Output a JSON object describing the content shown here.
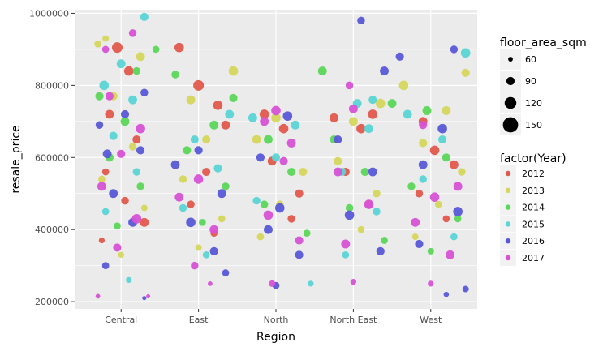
{
  "chart_data": {
    "type": "scatter",
    "title": "",
    "xlabel": "Region",
    "ylabel": "resale_price",
    "categories": [
      "Central",
      "East",
      "North",
      "North East",
      "West"
    ],
    "ylim": [
      180000,
      1010000
    ],
    "y_ticks": [
      200000,
      400000,
      600000,
      800000,
      1000000
    ],
    "y_tick_labels": [
      "200000",
      "400000",
      "600000",
      "800000",
      "1000000"
    ],
    "grid": true,
    "background": "#ebebeb",
    "legend_placement": "right",
    "size_legend": {
      "title": "floor_area_sqm",
      "items": [
        {
          "label": "60",
          "value": 60
        },
        {
          "label": "90",
          "value": 90
        },
        {
          "label": "120",
          "value": 120
        },
        {
          "label": "150",
          "value": 150
        }
      ]
    },
    "color_legend": {
      "title": "factor(Year)",
      "items": [
        {
          "label": "2012",
          "color": "#e2584c"
        },
        {
          "label": "2013",
          "color": "#d6d65c"
        },
        {
          "label": "2014",
          "color": "#5bd75a"
        },
        {
          "label": "2015",
          "color": "#5bd5d5"
        },
        {
          "label": "2016",
          "color": "#5858d8"
        },
        {
          "label": "2017",
          "color": "#d852d5"
        }
      ]
    },
    "series": [
      {
        "name": "2012",
        "points": [
          {
            "x": 0.95,
            "y": 905000,
            "s": 110
          },
          {
            "x": 1.1,
            "y": 840000,
            "s": 100
          },
          {
            "x": 0.85,
            "y": 720000,
            "s": 95
          },
          {
            "x": 1.2,
            "y": 650000,
            "s": 90
          },
          {
            "x": 0.8,
            "y": 560000,
            "s": 80
          },
          {
            "x": 1.05,
            "y": 480000,
            "s": 85
          },
          {
            "x": 1.3,
            "y": 420000,
            "s": 95
          },
          {
            "x": 0.75,
            "y": 370000,
            "s": 70
          },
          {
            "x": 1.75,
            "y": 905000,
            "s": 100
          },
          {
            "x": 2.0,
            "y": 800000,
            "s": 110
          },
          {
            "x": 2.25,
            "y": 745000,
            "s": 100
          },
          {
            "x": 2.35,
            "y": 690000,
            "s": 95
          },
          {
            "x": 2.1,
            "y": 560000,
            "s": 90
          },
          {
            "x": 1.9,
            "y": 470000,
            "s": 85
          },
          {
            "x": 2.2,
            "y": 390000,
            "s": 80
          },
          {
            "x": 2.85,
            "y": 720000,
            "s": 100
          },
          {
            "x": 3.1,
            "y": 680000,
            "s": 100
          },
          {
            "x": 2.95,
            "y": 590000,
            "s": 95
          },
          {
            "x": 3.3,
            "y": 500000,
            "s": 90
          },
          {
            "x": 3.2,
            "y": 430000,
            "s": 85
          },
          {
            "x": 3.75,
            "y": 710000,
            "s": 95
          },
          {
            "x": 4.1,
            "y": 680000,
            "s": 100
          },
          {
            "x": 4.25,
            "y": 720000,
            "s": 100
          },
          {
            "x": 3.9,
            "y": 560000,
            "s": 90
          },
          {
            "x": 4.2,
            "y": 470000,
            "s": 85
          },
          {
            "x": 4.9,
            "y": 700000,
            "s": 95
          },
          {
            "x": 5.05,
            "y": 620000,
            "s": 100
          },
          {
            "x": 5.3,
            "y": 580000,
            "s": 95
          },
          {
            "x": 4.85,
            "y": 500000,
            "s": 85
          },
          {
            "x": 5.2,
            "y": 430000,
            "s": 80
          }
        ]
      },
      {
        "name": "2013",
        "points": [
          {
            "x": 0.7,
            "y": 915000,
            "s": 80
          },
          {
            "x": 0.8,
            "y": 930000,
            "s": 75
          },
          {
            "x": 1.25,
            "y": 880000,
            "s": 95
          },
          {
            "x": 0.9,
            "y": 770000,
            "s": 90
          },
          {
            "x": 1.15,
            "y": 630000,
            "s": 85
          },
          {
            "x": 0.75,
            "y": 540000,
            "s": 80
          },
          {
            "x": 1.3,
            "y": 460000,
            "s": 75
          },
          {
            "x": 1.0,
            "y": 330000,
            "s": 70
          },
          {
            "x": 1.9,
            "y": 760000,
            "s": 95
          },
          {
            "x": 2.45,
            "y": 840000,
            "s": 100
          },
          {
            "x": 2.1,
            "y": 650000,
            "s": 90
          },
          {
            "x": 1.8,
            "y": 540000,
            "s": 85
          },
          {
            "x": 2.3,
            "y": 430000,
            "s": 80
          },
          {
            "x": 2.0,
            "y": 350000,
            "s": 75
          },
          {
            "x": 3.0,
            "y": 710000,
            "s": 100
          },
          {
            "x": 2.75,
            "y": 650000,
            "s": 95
          },
          {
            "x": 3.35,
            "y": 560000,
            "s": 90
          },
          {
            "x": 3.05,
            "y": 470000,
            "s": 85
          },
          {
            "x": 2.8,
            "y": 380000,
            "s": 80
          },
          {
            "x": 4.35,
            "y": 750000,
            "s": 100
          },
          {
            "x": 4.0,
            "y": 700000,
            "s": 95
          },
          {
            "x": 3.8,
            "y": 590000,
            "s": 90
          },
          {
            "x": 4.3,
            "y": 500000,
            "s": 85
          },
          {
            "x": 4.1,
            "y": 400000,
            "s": 80
          },
          {
            "x": 4.65,
            "y": 800000,
            "s": 100
          },
          {
            "x": 5.45,
            "y": 835000,
            "s": 90
          },
          {
            "x": 5.2,
            "y": 730000,
            "s": 95
          },
          {
            "x": 4.9,
            "y": 640000,
            "s": 90
          },
          {
            "x": 5.4,
            "y": 560000,
            "s": 85
          },
          {
            "x": 5.1,
            "y": 470000,
            "s": 80
          },
          {
            "x": 4.8,
            "y": 380000,
            "s": 75
          }
        ]
      },
      {
        "name": "2014",
        "points": [
          {
            "x": 0.72,
            "y": 770000,
            "s": 90
          },
          {
            "x": 1.2,
            "y": 840000,
            "s": 85
          },
          {
            "x": 1.45,
            "y": 900000,
            "s": 80
          },
          {
            "x": 1.7,
            "y": 830000,
            "s": 85
          },
          {
            "x": 1.05,
            "y": 700000,
            "s": 95
          },
          {
            "x": 0.85,
            "y": 600000,
            "s": 90
          },
          {
            "x": 1.25,
            "y": 520000,
            "s": 85
          },
          {
            "x": 0.95,
            "y": 410000,
            "s": 80
          },
          {
            "x": 2.45,
            "y": 765000,
            "s": 90
          },
          {
            "x": 2.2,
            "y": 690000,
            "s": 95
          },
          {
            "x": 1.85,
            "y": 620000,
            "s": 90
          },
          {
            "x": 2.35,
            "y": 520000,
            "s": 85
          },
          {
            "x": 2.05,
            "y": 420000,
            "s": 80
          },
          {
            "x": 3.6,
            "y": 840000,
            "s": 95
          },
          {
            "x": 2.9,
            "y": 650000,
            "s": 95
          },
          {
            "x": 3.2,
            "y": 560000,
            "s": 90
          },
          {
            "x": 2.85,
            "y": 470000,
            "s": 85
          },
          {
            "x": 3.4,
            "y": 390000,
            "s": 80
          },
          {
            "x": 4.5,
            "y": 750000,
            "s": 95
          },
          {
            "x": 3.75,
            "y": 650000,
            "s": 90
          },
          {
            "x": 4.15,
            "y": 560000,
            "s": 90
          },
          {
            "x": 3.95,
            "y": 460000,
            "s": 85
          },
          {
            "x": 4.4,
            "y": 370000,
            "s": 80
          },
          {
            "x": 4.95,
            "y": 730000,
            "s": 95
          },
          {
            "x": 5.2,
            "y": 600000,
            "s": 90
          },
          {
            "x": 4.75,
            "y": 520000,
            "s": 85
          },
          {
            "x": 5.35,
            "y": 430000,
            "s": 80
          },
          {
            "x": 5.0,
            "y": 340000,
            "s": 75
          }
        ]
      },
      {
        "name": "2015",
        "points": [
          {
            "x": 1.3,
            "y": 990000,
            "s": 90
          },
          {
            "x": 1.0,
            "y": 860000,
            "s": 95
          },
          {
            "x": 0.78,
            "y": 800000,
            "s": 100
          },
          {
            "x": 1.15,
            "y": 760000,
            "s": 95
          },
          {
            "x": 0.9,
            "y": 660000,
            "s": 90
          },
          {
            "x": 1.2,
            "y": 560000,
            "s": 85
          },
          {
            "x": 0.8,
            "y": 450000,
            "s": 80
          },
          {
            "x": 1.1,
            "y": 260000,
            "s": 70
          },
          {
            "x": 2.4,
            "y": 720000,
            "s": 95
          },
          {
            "x": 1.95,
            "y": 650000,
            "s": 90
          },
          {
            "x": 2.25,
            "y": 570000,
            "s": 90
          },
          {
            "x": 1.8,
            "y": 460000,
            "s": 85
          },
          {
            "x": 2.1,
            "y": 330000,
            "s": 80
          },
          {
            "x": 2.7,
            "y": 710000,
            "s": 95
          },
          {
            "x": 3.25,
            "y": 690000,
            "s": 95
          },
          {
            "x": 3.0,
            "y": 600000,
            "s": 90
          },
          {
            "x": 2.75,
            "y": 480000,
            "s": 85
          },
          {
            "x": 3.45,
            "y": 250000,
            "s": 70
          },
          {
            "x": 4.05,
            "y": 750000,
            "s": 95
          },
          {
            "x": 4.25,
            "y": 760000,
            "s": 90
          },
          {
            "x": 4.2,
            "y": 680000,
            "s": 95
          },
          {
            "x": 3.85,
            "y": 560000,
            "s": 90
          },
          {
            "x": 4.3,
            "y": 450000,
            "s": 85
          },
          {
            "x": 3.9,
            "y": 330000,
            "s": 80
          },
          {
            "x": 5.45,
            "y": 890000,
            "s": 100
          },
          {
            "x": 4.7,
            "y": 720000,
            "s": 95
          },
          {
            "x": 5.15,
            "y": 650000,
            "s": 90
          },
          {
            "x": 4.9,
            "y": 540000,
            "s": 85
          },
          {
            "x": 5.3,
            "y": 380000,
            "s": 80
          }
        ]
      },
      {
        "name": "2016",
        "points": [
          {
            "x": 0.72,
            "y": 690000,
            "s": 85
          },
          {
            "x": 0.82,
            "y": 610000,
            "s": 95
          },
          {
            "x": 1.05,
            "y": 720000,
            "s": 90
          },
          {
            "x": 1.3,
            "y": 780000,
            "s": 85
          },
          {
            "x": 1.25,
            "y": 620000,
            "s": 90
          },
          {
            "x": 0.9,
            "y": 500000,
            "s": 95
          },
          {
            "x": 1.15,
            "y": 420000,
            "s": 95
          },
          {
            "x": 0.8,
            "y": 300000,
            "s": 80
          },
          {
            "x": 1.3,
            "y": 210000,
            "s": 55
          },
          {
            "x": 1.7,
            "y": 580000,
            "s": 95
          },
          {
            "x": 2.0,
            "y": 620000,
            "s": 90
          },
          {
            "x": 2.3,
            "y": 500000,
            "s": 95
          },
          {
            "x": 1.9,
            "y": 420000,
            "s": 100
          },
          {
            "x": 2.2,
            "y": 340000,
            "s": 90
          },
          {
            "x": 2.35,
            "y": 280000,
            "s": 80
          },
          {
            "x": 3.15,
            "y": 715000,
            "s": 100
          },
          {
            "x": 2.8,
            "y": 600000,
            "s": 90
          },
          {
            "x": 3.05,
            "y": 460000,
            "s": 100
          },
          {
            "x": 2.9,
            "y": 400000,
            "s": 95
          },
          {
            "x": 3.3,
            "y": 330000,
            "s": 90
          },
          {
            "x": 3.0,
            "y": 245000,
            "s": 80
          },
          {
            "x": 4.1,
            "y": 980000,
            "s": 85
          },
          {
            "x": 4.4,
            "y": 840000,
            "s": 95
          },
          {
            "x": 3.8,
            "y": 650000,
            "s": 90
          },
          {
            "x": 4.25,
            "y": 560000,
            "s": 95
          },
          {
            "x": 3.95,
            "y": 440000,
            "s": 100
          },
          {
            "x": 4.35,
            "y": 340000,
            "s": 90
          },
          {
            "x": 4.6,
            "y": 880000,
            "s": 90
          },
          {
            "x": 5.3,
            "y": 900000,
            "s": 85
          },
          {
            "x": 5.15,
            "y": 680000,
            "s": 100
          },
          {
            "x": 4.9,
            "y": 580000,
            "s": 95
          },
          {
            "x": 5.35,
            "y": 450000,
            "s": 100
          },
          {
            "x": 4.85,
            "y": 360000,
            "s": 90
          },
          {
            "x": 5.45,
            "y": 235000,
            "s": 75
          },
          {
            "x": 5.2,
            "y": 220000,
            "s": 65
          }
        ]
      },
      {
        "name": "2017",
        "points": [
          {
            "x": 1.15,
            "y": 945000,
            "s": 85
          },
          {
            "x": 0.8,
            "y": 900000,
            "s": 80
          },
          {
            "x": 0.85,
            "y": 770000,
            "s": 90
          },
          {
            "x": 1.25,
            "y": 680000,
            "s": 100
          },
          {
            "x": 1.0,
            "y": 610000,
            "s": 90
          },
          {
            "x": 0.75,
            "y": 520000,
            "s": 95
          },
          {
            "x": 1.2,
            "y": 430000,
            "s": 100
          },
          {
            "x": 0.95,
            "y": 350000,
            "s": 90
          },
          {
            "x": 0.7,
            "y": 215000,
            "s": 60
          },
          {
            "x": 1.35,
            "y": 215000,
            "s": 55
          },
          {
            "x": 2.0,
            "y": 540000,
            "s": 100
          },
          {
            "x": 1.75,
            "y": 490000,
            "s": 95
          },
          {
            "x": 2.2,
            "y": 400000,
            "s": 95
          },
          {
            "x": 1.95,
            "y": 300000,
            "s": 85
          },
          {
            "x": 2.15,
            "y": 250000,
            "s": 60
          },
          {
            "x": 3.0,
            "y": 730000,
            "s": 100
          },
          {
            "x": 2.85,
            "y": 700000,
            "s": 95
          },
          {
            "x": 3.2,
            "y": 640000,
            "s": 95
          },
          {
            "x": 3.1,
            "y": 590000,
            "s": 90
          },
          {
            "x": 2.9,
            "y": 440000,
            "s": 100
          },
          {
            "x": 3.3,
            "y": 370000,
            "s": 90
          },
          {
            "x": 2.95,
            "y": 250000,
            "s": 75
          },
          {
            "x": 3.95,
            "y": 800000,
            "s": 85
          },
          {
            "x": 4.0,
            "y": 735000,
            "s": 95
          },
          {
            "x": 3.8,
            "y": 560000,
            "s": 95
          },
          {
            "x": 4.2,
            "y": 470000,
            "s": 100
          },
          {
            "x": 3.9,
            "y": 360000,
            "s": 95
          },
          {
            "x": 4.0,
            "y": 255000,
            "s": 70
          },
          {
            "x": 4.9,
            "y": 690000,
            "s": 90
          },
          {
            "x": 5.05,
            "y": 490000,
            "s": 100
          },
          {
            "x": 5.35,
            "y": 520000,
            "s": 95
          },
          {
            "x": 4.8,
            "y": 420000,
            "s": 95
          },
          {
            "x": 5.25,
            "y": 330000,
            "s": 95
          },
          {
            "x": 5.0,
            "y": 250000,
            "s": 70
          }
        ]
      }
    ]
  }
}
